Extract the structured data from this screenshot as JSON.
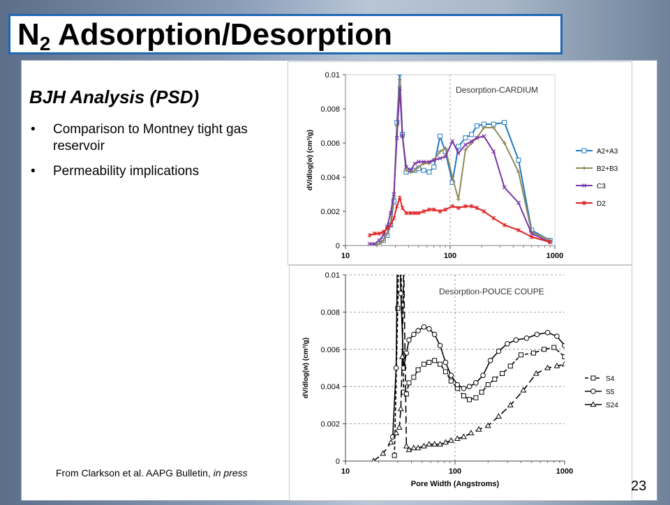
{
  "slide": {
    "title_main": "N",
    "title_sub": "2",
    "title_rest": " Adsorption/Desorption",
    "subheading": "BJH Analysis (PSD)",
    "bullets": [
      "Comparison to Montney tight gas reservoir",
      "Permeability implications"
    ],
    "bullet_symbol": "•",
    "footnote_prefix": "From Clarkson et al. AAPG Bulletin, ",
    "footnote_italic": "in press",
    "page_number": "23"
  },
  "chart_data": [
    {
      "type": "line",
      "title": "Desorption-CARDIUM",
      "xlabel": "",
      "ylabel": "dV/dlog(w) (cm³/g)",
      "xscale": "log",
      "xlim": [
        10,
        1000
      ],
      "ylim": [
        0,
        0.01
      ],
      "x_ticks": [
        "10",
        "100",
        "1000"
      ],
      "y_ticks": [
        "0",
        "0.002",
        "0.004",
        "0.006",
        "0.008",
        "0.01"
      ],
      "grid": "vertical dashed at 100",
      "legend": "right",
      "series": [
        {
          "name": "A2+A3",
          "color": "#1f77c4",
          "marker": "square",
          "x": [
            19,
            21,
            23,
            25,
            27,
            29,
            31,
            33,
            35,
            38,
            42,
            46,
            50,
            56,
            63,
            70,
            80,
            90,
            105,
            120,
            140,
            160,
            180,
            210,
            260,
            330,
            450,
            600,
            900
          ],
          "y": [
            0,
            0.0001,
            0.0003,
            0.0006,
            0.0012,
            0.0026,
            0.0072,
            0.0101,
            0.0065,
            0.0043,
            0.0044,
            0.0044,
            0.0045,
            0.0044,
            0.0043,
            0.0046,
            0.0064,
            0.0055,
            0.0037,
            0.0058,
            0.0063,
            0.0065,
            0.007,
            0.0071,
            0.0071,
            0.0072,
            0.005,
            0.0009,
            0.0003
          ]
        },
        {
          "name": "B2+B3",
          "color": "#8f8a5a",
          "marker": "plus",
          "x": [
            19,
            21,
            23,
            25,
            27,
            29,
            31,
            33,
            35,
            38,
            42,
            46,
            50,
            56,
            63,
            70,
            80,
            90,
            105,
            120,
            140,
            160,
            180,
            210,
            260,
            330,
            450,
            600,
            900
          ],
          "y": [
            0,
            0.0001,
            0.0003,
            0.0007,
            0.0013,
            0.0028,
            0.007,
            0.0097,
            0.0064,
            0.0044,
            0.0043,
            0.0044,
            0.0046,
            0.0048,
            0.0048,
            0.005,
            0.0055,
            0.0057,
            0.004,
            0.0027,
            0.0056,
            0.006,
            0.0063,
            0.0069,
            0.0069,
            0.006,
            0.0043,
            0.0008,
            0.0003
          ]
        },
        {
          "name": "C3",
          "color": "#7a35a6",
          "marker": "x",
          "x": [
            17,
            19,
            21,
            23,
            25,
            27,
            29,
            31,
            33,
            35,
            38,
            42,
            46,
            50,
            56,
            63,
            70,
            80,
            90,
            105,
            120,
            140,
            160,
            180,
            210,
            260,
            330,
            450,
            600,
            900
          ],
          "y": [
            0.0001,
            0.0001,
            0.0003,
            0.0006,
            0.0011,
            0.0019,
            0.003,
            0.0063,
            0.0092,
            0.0064,
            0.0046,
            0.0044,
            0.0048,
            0.0049,
            0.0049,
            0.0049,
            0.005,
            0.0051,
            0.0052,
            0.0061,
            0.0054,
            0.0059,
            0.0061,
            0.0063,
            0.0064,
            0.0055,
            0.0034,
            0.0025,
            0.0007,
            0.0002
          ]
        },
        {
          "name": "D2",
          "color": "#e02020",
          "marker": "star",
          "x": [
            17,
            19,
            21,
            23,
            25,
            27,
            29,
            31,
            33,
            35,
            38,
            42,
            46,
            50,
            56,
            63,
            70,
            80,
            90,
            105,
            120,
            140,
            160,
            180,
            210,
            260,
            330,
            450,
            600,
            900
          ],
          "y": [
            0.0006,
            0.0007,
            0.0007,
            0.0008,
            0.001,
            0.0012,
            0.0016,
            0.0023,
            0.0028,
            0.0022,
            0.0019,
            0.0019,
            0.0019,
            0.0019,
            0.002,
            0.0021,
            0.0021,
            0.002,
            0.0021,
            0.0023,
            0.0022,
            0.0023,
            0.0023,
            0.0022,
            0.002,
            0.0016,
            0.0012,
            0.0009,
            0.0005,
            0.0002
          ]
        }
      ]
    },
    {
      "type": "line",
      "title": "Desorption-POUCE COUPE",
      "xlabel": "Pore Width (Angstroms)",
      "ylabel": "dV/dlog(w) (cm³/g)",
      "xscale": "log",
      "xlim": [
        10,
        1000
      ],
      "ylim": [
        0,
        0.01
      ],
      "x_ticks": [
        "10",
        "100",
        "1000"
      ],
      "y_ticks": [
        "0",
        "0.002",
        "0.004",
        "0.006",
        "0.008",
        "0.01"
      ],
      "grid": "horizontal dashed",
      "legend": "right",
      "series": [
        {
          "name": "S4",
          "color": "#000000",
          "dash": "5,3",
          "marker": "square",
          "x": [
            28,
            30,
            31,
            32,
            34,
            36,
            38,
            42,
            46,
            52,
            58,
            65,
            73,
            82,
            92,
            105,
            120,
            135,
            155,
            175,
            200,
            230,
            270,
            320,
            400,
            520,
            650,
            800,
            1000
          ],
          "y": [
            0.0003,
            0.0082,
            0.013,
            0.0108,
            0.0037,
            0.0036,
            0.0042,
            0.0045,
            0.0049,
            0.0052,
            0.0053,
            0.0054,
            0.0052,
            0.0048,
            0.0043,
            0.0039,
            0.0035,
            0.0033,
            0.0034,
            0.0037,
            0.0041,
            0.0044,
            0.0047,
            0.0051,
            0.0057,
            0.0058,
            0.006,
            0.0061,
            0.0056
          ]
        },
        {
          "name": "S5",
          "color": "#000000",
          "dash": "",
          "marker": "circle",
          "x": [
            27,
            29,
            30,
            31,
            32,
            34,
            36,
            38,
            42,
            46,
            52,
            58,
            65,
            73,
            82,
            92,
            105,
            120,
            135,
            155,
            180,
            210,
            250,
            300,
            360,
            450,
            560,
            700,
            850,
            1000
          ],
          "y": [
            0.0013,
            0.005,
            0.013,
            0.0125,
            0.009,
            0.005,
            0.0058,
            0.0065,
            0.0068,
            0.007,
            0.0072,
            0.0071,
            0.0068,
            0.0062,
            0.0053,
            0.0046,
            0.0041,
            0.0039,
            0.004,
            0.0042,
            0.0046,
            0.0054,
            0.0059,
            0.0063,
            0.0065,
            0.0066,
            0.0068,
            0.0069,
            0.0067,
            0.0062
          ]
        },
        {
          "name": "S24",
          "color": "#000000",
          "dash": "10,5",
          "marker": "triangle",
          "x": [
            18,
            22,
            26,
            29,
            31,
            32,
            33,
            34,
            36,
            38,
            42,
            46,
            52,
            58,
            65,
            73,
            82,
            92,
            105,
            120,
            140,
            165,
            200,
            250,
            320,
            420,
            550,
            700,
            850,
            1000
          ],
          "y": [
            0,
            0.0004,
            0.001,
            0.0015,
            0.0018,
            0.0028,
            0.0056,
            0.0105,
            0.0008,
            0.0006,
            0.0007,
            0.0007,
            0.0008,
            0.0009,
            0.0009,
            0.0009,
            0.001,
            0.0011,
            0.0012,
            0.0013,
            0.0015,
            0.0017,
            0.0019,
            0.0024,
            0.003,
            0.0038,
            0.0047,
            0.005,
            0.0051,
            0.0052
          ]
        }
      ]
    }
  ]
}
